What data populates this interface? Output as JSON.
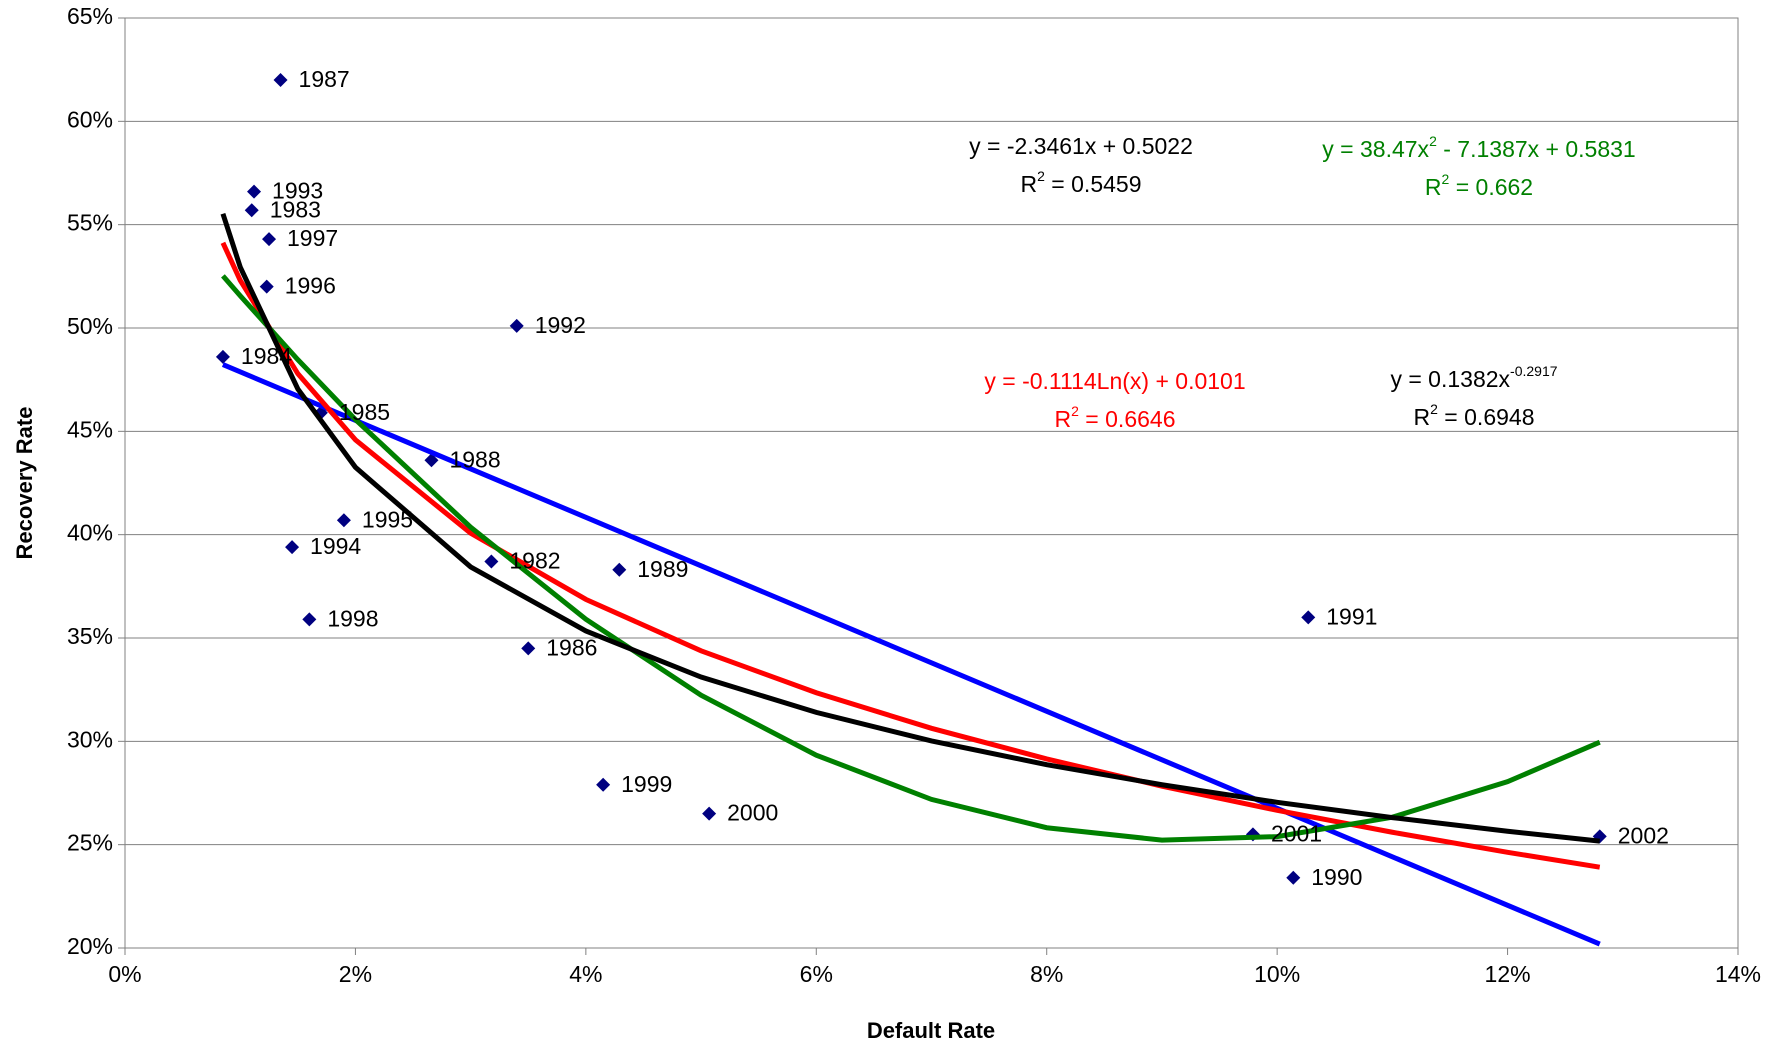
{
  "chart_data": {
    "type": "scatter",
    "x_label": "Default Rate",
    "y_label": "Recovery Rate",
    "xlim": [
      0,
      14
    ],
    "ylim": [
      20,
      65
    ],
    "xticks": [
      {
        "value": 0,
        "label": "0%"
      },
      {
        "value": 2,
        "label": "2%"
      },
      {
        "value": 4,
        "label": "4%"
      },
      {
        "value": 6,
        "label": "6%"
      },
      {
        "value": 8,
        "label": "8%"
      },
      {
        "value": 10,
        "label": "10%"
      },
      {
        "value": 12,
        "label": "12%"
      },
      {
        "value": 14,
        "label": "14%"
      }
    ],
    "yticks": [
      {
        "value": 20,
        "label": "20%"
      },
      {
        "value": 25,
        "label": "25%"
      },
      {
        "value": 30,
        "label": "30%"
      },
      {
        "value": 35,
        "label": "35%"
      },
      {
        "value": 40,
        "label": "40%"
      },
      {
        "value": 45,
        "label": "45%"
      },
      {
        "value": 50,
        "label": "50%"
      },
      {
        "value": 55,
        "label": "55%"
      },
      {
        "value": 60,
        "label": "60%"
      },
      {
        "value": 65,
        "label": "65%"
      }
    ],
    "grid": true,
    "points": {
      "color": "#000080",
      "labels": [
        "1987",
        "1993",
        "1983",
        "1997",
        "1996",
        "1992",
        "1984",
        "1985",
        "1988",
        "1995",
        "1994",
        "1982",
        "1989",
        "1998",
        "1986",
        "1991",
        "1999",
        "2000",
        "2001",
        "2002",
        "1990"
      ],
      "x": [
        1.35,
        1.12,
        1.1,
        1.25,
        1.23,
        3.4,
        0.85,
        1.7,
        2.66,
        1.9,
        1.45,
        3.18,
        4.29,
        1.6,
        3.5,
        10.27,
        4.15,
        5.07,
        9.79,
        12.8,
        10.14
      ],
      "y": [
        62.0,
        56.6,
        55.7,
        54.3,
        52.0,
        50.1,
        48.6,
        45.9,
        43.6,
        40.7,
        39.4,
        38.7,
        38.3,
        35.9,
        34.5,
        36.0,
        27.9,
        26.5,
        25.5,
        25.4,
        23.4
      ]
    },
    "trendlines": [
      {
        "color": "#0000ff",
        "x": [
          0.85,
          12.8
        ],
        "y": [
          48.23,
          20.19
        ]
      },
      {
        "color": "#ff0000",
        "x": [
          0.85,
          1,
          1.5,
          2,
          3,
          4,
          5,
          6,
          7,
          8,
          9,
          10,
          11,
          12,
          12.8
        ],
        "y": [
          54.12,
          52.31,
          47.79,
          44.59,
          40.07,
          36.87,
          34.38,
          32.35,
          30.63,
          29.15,
          27.83,
          26.66,
          25.6,
          24.63,
          23.91
        ]
      },
      {
        "color": "#008000",
        "x": [
          0.85,
          1,
          1.5,
          2,
          3,
          4,
          5,
          6,
          7,
          8,
          9,
          10,
          11,
          12,
          12.8
        ],
        "y": [
          52.52,
          51.56,
          48.47,
          45.57,
          40.36,
          35.91,
          32.23,
          29.33,
          27.19,
          25.82,
          25.22,
          25.39,
          26.33,
          28.05,
          29.96
        ]
      },
      {
        "color": "#000000",
        "x": [
          0.85,
          1,
          1.5,
          2,
          3,
          4,
          5,
          6,
          7,
          8,
          9,
          10,
          11,
          12,
          12.8
        ],
        "y": [
          55.53,
          52.95,
          47.05,
          43.26,
          38.44,
          35.34,
          33.11,
          31.4,
          30.02,
          28.87,
          27.9,
          27.05,
          26.31,
          25.65,
          25.17
        ]
      }
    ],
    "annotations": [
      {
        "color": "#000000",
        "lines": [
          [
            "y = -2.3461x + 0.5022"
          ],
          [
            "R",
            "2",
            " = 0.5459"
          ]
        ]
      },
      {
        "color": "#008000",
        "lines": [
          [
            "y = 38.47x",
            "2",
            " - 7.1387x + 0.5831"
          ],
          [
            "R",
            "2",
            " = 0.662"
          ]
        ]
      },
      {
        "color": "#ff0000",
        "lines": [
          [
            "y = -0.1114Ln(x) + 0.0101"
          ],
          [
            "R",
            "2",
            " = 0.6646"
          ]
        ]
      },
      {
        "color": "#000000",
        "lines": [
          [
            "y = 0.1382x",
            "-0.2917"
          ],
          [
            "R",
            "2",
            " = 0.6948"
          ]
        ]
      }
    ]
  }
}
